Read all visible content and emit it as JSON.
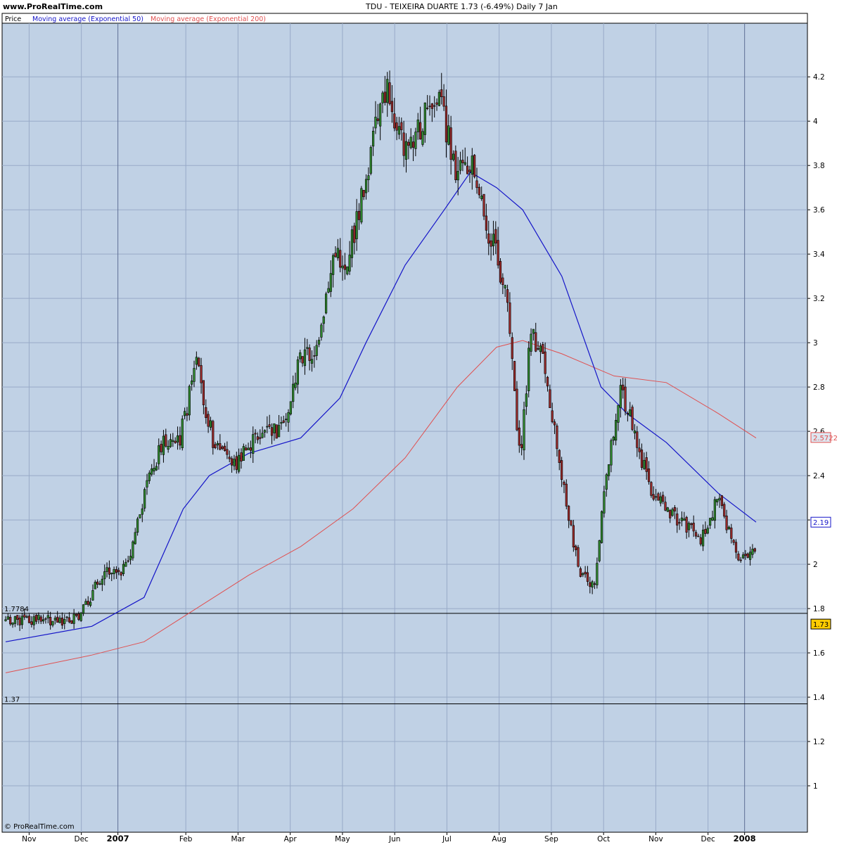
{
  "header": {
    "site": "www.ProRealTime.com",
    "title": "TDU - TEIXEIRA DUARTE    1.73 (-6.49%)    Daily  7 Jan"
  },
  "legend": {
    "price": "Price",
    "ma50": "Moving average (Exponential 50)",
    "ma200": "Moving average (Exponential 200)"
  },
  "footer": {
    "copyright": "© ProRealTime.com"
  },
  "colors": {
    "plot_bg": "#c0d1e5",
    "grid": "#98aac8",
    "up": "#2f8a2f",
    "down": "#9c2a2a",
    "ma50": "#1414c8",
    "ma200": "#e05050",
    "last_price_bg": "#ffcc00"
  },
  "chart_data": {
    "type": "candlestick",
    "title": "TDU - TEIXEIRA DUARTE",
    "ylim": [
      0.8,
      4.35
    ],
    "y_ticks": [
      1,
      1.2,
      1.4,
      1.6,
      1.8,
      2,
      2.2,
      2.4,
      2.6,
      2.8,
      3,
      3.2,
      3.4,
      3.6,
      3.8,
      4,
      4.2
    ],
    "x_labels": [
      "Nov",
      "Dec",
      "2007",
      "Feb",
      "Mar",
      "Apr",
      "May",
      "Jun",
      "Jul",
      "Aug",
      "Sep",
      "Oct",
      "Nov",
      "Dec",
      "2008"
    ],
    "horizontal_lines": [
      {
        "value": 1.7784,
        "label": "1.7784"
      },
      {
        "value": 1.37,
        "label": "1.37"
      }
    ],
    "markers": [
      {
        "name": "ema200",
        "value": 2.5722,
        "label": "2.5722"
      },
      {
        "name": "ema50",
        "value": 2.19,
        "label": "2.19"
      },
      {
        "name": "price",
        "value": 1.73,
        "label": "1.73"
      }
    ],
    "price_path": [
      [
        "Oct 2006",
        1.75
      ],
      [
        "Dec 2006",
        1.75
      ],
      [
        "Dec 2006",
        1.98
      ],
      [
        "Jan 2007",
        1.98
      ],
      [
        "Jan 2007",
        2.3
      ],
      [
        "Jan 2007",
        2.55
      ],
      [
        "Feb 2007",
        2.55
      ],
      [
        "Feb 2007",
        2.9
      ],
      [
        "Feb 2007",
        2.55
      ],
      [
        "Mar 2007",
        2.45
      ],
      [
        "Mar 2007",
        2.6
      ],
      [
        "Apr 2007",
        2.6
      ],
      [
        "Apr 2007",
        2.95
      ],
      [
        "Apr 2007",
        2.95
      ],
      [
        "May 2007",
        3.4
      ],
      [
        "May 2007",
        3.35
      ],
      [
        "May 2007",
        3.6
      ],
      [
        "May 2007",
        3.9
      ],
      [
        "Jun 2007",
        4.15
      ],
      [
        "Jun 2007",
        3.85
      ],
      [
        "Jun 2007",
        4.0
      ],
      [
        "Jul 2007",
        4.1
      ],
      [
        "Jul 2007",
        3.75
      ],
      [
        "Jul 2007",
        3.8
      ],
      [
        "Aug 2007",
        3.5
      ],
      [
        "Aug 2007",
        3.35
      ],
      [
        "Aug 2007",
        3.1
      ],
      [
        "Aug 2007",
        2.45
      ],
      [
        "Aug 2007",
        3.05
      ],
      [
        "Sep 2007",
        2.9
      ],
      [
        "Sep 2007",
        2.4
      ],
      [
        "Sep 2007",
        1.95
      ],
      [
        "Oct 2007",
        1.9
      ],
      [
        "Oct 2007",
        2.45
      ],
      [
        "Oct 2007",
        2.8
      ],
      [
        "Oct 2007",
        2.6
      ],
      [
        "Nov 2007",
        2.3
      ],
      [
        "Nov 2007",
        2.2
      ],
      [
        "Dec 2007",
        2.1
      ],
      [
        "Dec 2007",
        2.3
      ],
      [
        "Dec 2007",
        2.05
      ],
      [
        "Jan 2008",
        2.05
      ],
      [
        "Jan 2008",
        1.73
      ]
    ],
    "ema50_path": [
      [
        "Oct 2006",
        1.65
      ],
      [
        "Dec 2006",
        1.72
      ],
      [
        "Jan 2007",
        1.85
      ],
      [
        "Feb 2007",
        2.25
      ],
      [
        "Feb 2007",
        2.4
      ],
      [
        "Mar 2007",
        2.5
      ],
      [
        "Apr 2007",
        2.57
      ],
      [
        "May 2007",
        2.75
      ],
      [
        "May 2007",
        3.0
      ],
      [
        "Jun 2007",
        3.35
      ],
      [
        "Jul 2007",
        3.6
      ],
      [
        "Jul 2007",
        3.77
      ],
      [
        "Aug 2007",
        3.7
      ],
      [
        "Aug 2007",
        3.6
      ],
      [
        "Sep 2007",
        3.3
      ],
      [
        "Oct 2007",
        2.8
      ],
      [
        "Oct 2007",
        2.68
      ],
      [
        "Nov 2007",
        2.55
      ],
      [
        "Dec 2007",
        2.32
      ],
      [
        "Jan 2008",
        2.19
      ]
    ],
    "ema200_path": [
      [
        "Oct 2006",
        1.51
      ],
      [
        "Dec 2006",
        1.59
      ],
      [
        "Jan 2007",
        1.65
      ],
      [
        "Feb 2007",
        1.8
      ],
      [
        "Mar 2007",
        1.95
      ],
      [
        "Apr 2007",
        2.08
      ],
      [
        "May 2007",
        2.25
      ],
      [
        "Jun 2007",
        2.48
      ],
      [
        "Jul 2007",
        2.8
      ],
      [
        "Aug 2007",
        2.98
      ],
      [
        "Aug 2007",
        3.01
      ],
      [
        "Sep 2007",
        2.95
      ],
      [
        "Oct 2007",
        2.85
      ],
      [
        "Nov 2007",
        2.82
      ],
      [
        "Dec 2007",
        2.68
      ],
      [
        "Jan 2008",
        2.57
      ]
    ]
  }
}
